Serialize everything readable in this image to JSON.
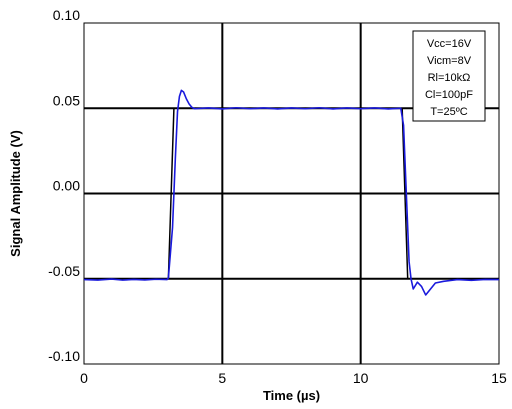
{
  "chart_data": {
    "type": "line",
    "title": "",
    "xlabel": "Time (µs)",
    "ylabel": "Signal Amplitude (V)",
    "xlim": [
      0,
      15
    ],
    "ylim": [
      -0.1,
      0.1
    ],
    "x_ticks": [
      0,
      5,
      10,
      15
    ],
    "x_tick_labels": [
      "0",
      "5",
      "10",
      "15"
    ],
    "y_ticks": [
      -0.1,
      -0.05,
      0.0,
      0.05,
      0.1
    ],
    "y_tick_labels": [
      "-0.10",
      "-0.05",
      "0.00",
      "0.05",
      "0.10"
    ],
    "grid": true,
    "legend_position": "top-right",
    "legend_lines": [
      "Vcc=16V",
      "Vicm=8V",
      "Rl=10kΩ",
      "Cl=100pF",
      "T=25ºC"
    ],
    "series": [
      {
        "color": "#000000",
        "points": [
          [
            0,
            -0.05
          ],
          [
            3.05,
            -0.05
          ],
          [
            3.25,
            0.05
          ],
          [
            11.5,
            0.05
          ],
          [
            11.7,
            -0.05
          ],
          [
            15,
            -0.05
          ]
        ]
      },
      {
        "color": "#1a1adc",
        "points": [
          [
            0,
            -0.0505
          ],
          [
            0.5,
            -0.0508
          ],
          [
            1.0,
            -0.0502
          ],
          [
            1.4,
            -0.0508
          ],
          [
            1.8,
            -0.0504
          ],
          [
            2.2,
            -0.0507
          ],
          [
            2.6,
            -0.0503
          ],
          [
            3.0,
            -0.0505
          ],
          [
            3.05,
            -0.0495
          ],
          [
            3.2,
            -0.02
          ],
          [
            3.3,
            0.02
          ],
          [
            3.38,
            0.048
          ],
          [
            3.45,
            0.057
          ],
          [
            3.52,
            0.0605
          ],
          [
            3.6,
            0.0595
          ],
          [
            3.7,
            0.0555
          ],
          [
            3.8,
            0.0525
          ],
          [
            3.9,
            0.0505
          ],
          [
            4.0,
            0.0497
          ],
          [
            4.5,
            0.0502
          ],
          [
            5.0,
            0.0496
          ],
          [
            5.5,
            0.0503
          ],
          [
            6.0,
            0.0497
          ],
          [
            6.5,
            0.0502
          ],
          [
            7.0,
            0.0496
          ],
          [
            7.5,
            0.0502
          ],
          [
            8.0,
            0.0497
          ],
          [
            8.5,
            0.0503
          ],
          [
            9.0,
            0.0496
          ],
          [
            9.5,
            0.0502
          ],
          [
            10.0,
            0.0497
          ],
          [
            10.5,
            0.0502
          ],
          [
            11.0,
            0.0496
          ],
          [
            11.45,
            0.05
          ],
          [
            11.55,
            0.04
          ],
          [
            11.65,
            0.0
          ],
          [
            11.75,
            -0.04
          ],
          [
            11.82,
            -0.05
          ],
          [
            11.9,
            -0.056
          ],
          [
            12.05,
            -0.052
          ],
          [
            12.2,
            -0.0545
          ],
          [
            12.35,
            -0.0595
          ],
          [
            12.5,
            -0.0565
          ],
          [
            12.7,
            -0.0525
          ],
          [
            13.0,
            -0.0515
          ],
          [
            13.5,
            -0.0505
          ],
          [
            14.0,
            -0.0509
          ],
          [
            14.5,
            -0.0504
          ],
          [
            15,
            -0.0505
          ]
        ]
      }
    ]
  }
}
